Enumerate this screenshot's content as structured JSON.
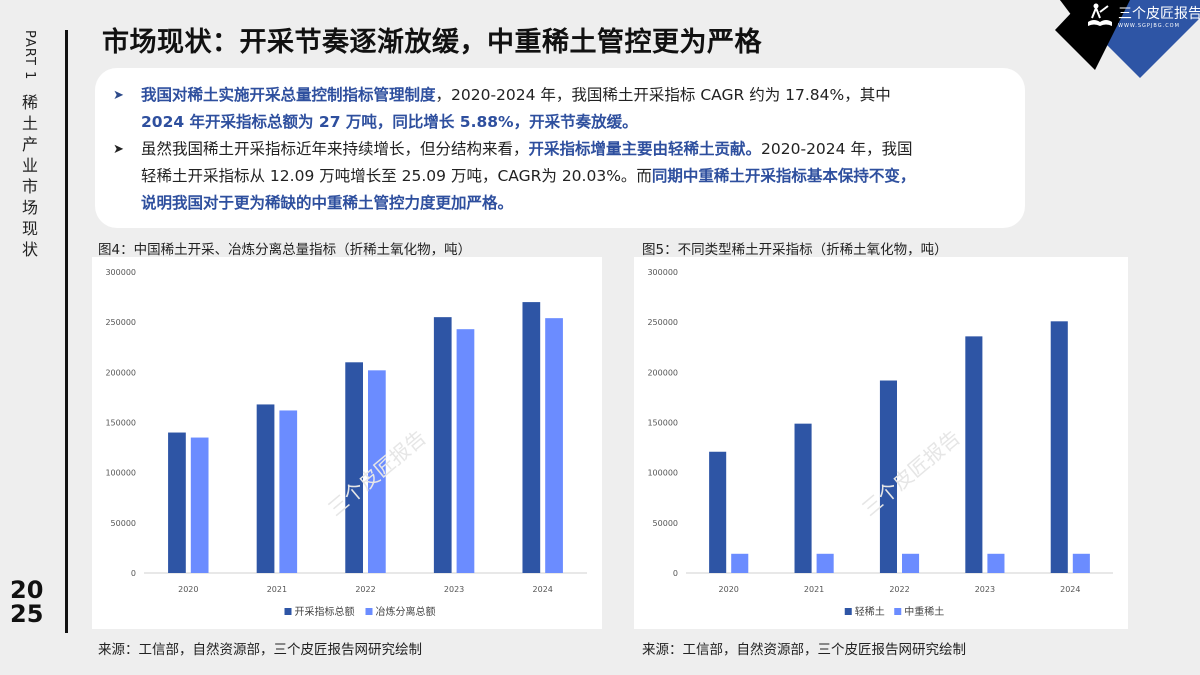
{
  "sidebar": {
    "part": "PART 1",
    "section_chars": [
      "稀",
      "土",
      "产",
      "业",
      "市",
      "场",
      "现",
      "状"
    ],
    "year_top": "20",
    "year_bottom": "25"
  },
  "header": {
    "title": "市场现状：开采节奏逐渐放缓，中重稀土管控更为严格"
  },
  "logo": {
    "name": "三个皮匠报告",
    "url_text": "WWW.SGPJBG.COM",
    "colors": {
      "black": "#000000",
      "blue": "#2e55a5"
    }
  },
  "summary": {
    "bullets": [
      {
        "lines": [
          [
            {
              "t": "我国对稀土实施开采总量控制指标管理制度",
              "hl": true
            },
            {
              "t": "，2020-2024 年，我国稀土开采指标 CAGR 约为 17.84%，其中",
              "hl": false
            }
          ],
          [
            {
              "t": "2024 年开采指标总额为 27 万吨，同比增长 5.88%，开采节奏放缓。",
              "hl": true
            }
          ]
        ]
      },
      {
        "lines": [
          [
            {
              "t": "虽然我国稀土开采指标近年来持续增长，但分结构来看，",
              "hl": false
            },
            {
              "t": "开采指标增量主要由轻稀土贡献。",
              "hl": true
            },
            {
              "t": "2020-2024 年，我国",
              "hl": false
            }
          ],
          [
            {
              "t": "轻稀土开采指标从 12.09 万吨增长至 25.09 万吨，CAGR为 20.03%。而",
              "hl": false
            },
            {
              "t": "同期中重稀土开采指标基本保持不变，",
              "hl": true
            }
          ],
          [
            {
              "t": "说明我国对于更为稀缺的中重稀土管控力度更加严格。",
              "hl": true
            }
          ]
        ]
      }
    ],
    "colors": {
      "highlight": "#2e4f9e",
      "normal": "#222222"
    }
  },
  "figures": [
    {
      "caption": "图4：中国稀土开采、冶炼分离总量指标（折稀土氧化物，吨）",
      "source": "来源：工信部，自然资源部，三个皮匠报告网研究绘制"
    },
    {
      "caption": "图5：不同类型稀土开采指标（折稀土氧化物，吨）",
      "source": "来源：工信部，自然资源部，三个皮匠报告网研究绘制"
    }
  ],
  "chart_data": [
    {
      "type": "bar",
      "title": "图4：中国稀土开采、冶炼分离总量指标（折稀土氧化物，吨）",
      "categories": [
        "2020",
        "2021",
        "2022",
        "2023",
        "2024"
      ],
      "series": [
        {
          "name": "开采指标总额",
          "color": "#2e55a5",
          "values": [
            140000,
            168000,
            210000,
            255000,
            270000
          ]
        },
        {
          "name": "冶炼分离总额",
          "color": "#6b8cff",
          "values": [
            135000,
            162000,
            202000,
            243000,
            254000
          ]
        }
      ],
      "xlabel": "",
      "ylabel": "",
      "ylim": [
        0,
        300000
      ],
      "yticks": [
        "0",
        "50000",
        "100000",
        "150000",
        "200000",
        "250000",
        "300000"
      ],
      "grid": false,
      "legend_position": "bottom"
    },
    {
      "type": "bar",
      "title": "图5：不同类型稀土开采指标（折稀土氧化物，吨）",
      "categories": [
        "2020",
        "2021",
        "2022",
        "2023",
        "2024"
      ],
      "series": [
        {
          "name": "轻稀土",
          "color": "#2e55a5",
          "values": [
            120850,
            148850,
            191850,
            235850,
            250850
          ]
        },
        {
          "name": "中重稀土",
          "color": "#6b8cff",
          "values": [
            19150,
            19150,
            19150,
            19150,
            19150
          ]
        }
      ],
      "xlabel": "",
      "ylabel": "",
      "ylim": [
        0,
        300000
      ],
      "yticks": [
        "0",
        "50000",
        "100000",
        "150000",
        "200000",
        "250000",
        "300000"
      ],
      "grid": false,
      "legend_position": "bottom"
    }
  ],
  "watermark": "三个皮匠报告"
}
